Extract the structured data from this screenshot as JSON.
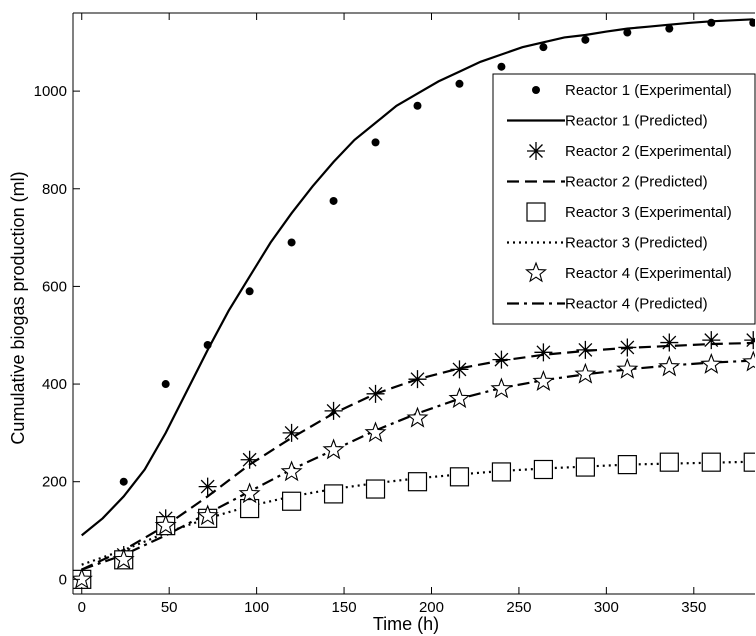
{
  "chart_data": {
    "type": "line",
    "title": "",
    "xlabel": "Time (h)",
    "ylabel": "Cumulative biogas production (ml)",
    "xlim": [
      -5,
      385
    ],
    "ylim": [
      -30,
      1160
    ],
    "x_ticks": [
      0,
      50,
      100,
      150,
      200,
      250,
      300,
      350
    ],
    "y_ticks": [
      0,
      200,
      400,
      600,
      800,
      1000
    ],
    "grid": false,
    "legend_position": "top-right",
    "legend": [
      "Reactor 1 (Experimental)",
      "Reactor 1 (Predicted)",
      "Reactor 2 (Experimental)",
      "Reactor 2 (Predicted)",
      "Reactor 3 (Experimental)",
      "Reactor 3 (Predicted)",
      "Reactor 4 (Experimental)",
      "Reactor 4 (Predicted)"
    ],
    "series": [
      {
        "name": "Reactor 1 (Experimental)",
        "kind": "markers",
        "marker": "dot",
        "x": [
          0,
          24,
          48,
          72,
          96,
          120,
          144,
          168,
          192,
          216,
          240,
          264,
          288,
          312,
          336,
          360,
          384
        ],
        "y": [
          0,
          200,
          400,
          480,
          590,
          690,
          775,
          895,
          970,
          1015,
          1050,
          1090,
          1105,
          1120,
          1128,
          1140,
          1140
        ]
      },
      {
        "name": "Reactor 1 (Predicted)",
        "kind": "line",
        "dash": "solid",
        "x": [
          0,
          12,
          24,
          36,
          48,
          60,
          72,
          84,
          96,
          108,
          120,
          132,
          144,
          156,
          168,
          180,
          192,
          204,
          216,
          228,
          240,
          252,
          264,
          276,
          288,
          300,
          312,
          324,
          336,
          348,
          360,
          372,
          384
        ],
        "y": [
          90,
          125,
          170,
          225,
          300,
          385,
          470,
          550,
          620,
          690,
          750,
          805,
          855,
          900,
          935,
          970,
          995,
          1020,
          1040,
          1060,
          1075,
          1090,
          1100,
          1110,
          1115,
          1122,
          1128,
          1132,
          1136,
          1140,
          1143,
          1145,
          1147
        ]
      },
      {
        "name": "Reactor 2 (Experimental)",
        "kind": "markers",
        "marker": "asterisk",
        "x": [
          0,
          24,
          48,
          72,
          96,
          120,
          144,
          168,
          192,
          216,
          240,
          264,
          288,
          312,
          336,
          360,
          384
        ],
        "y": [
          0,
          50,
          125,
          190,
          245,
          300,
          345,
          380,
          410,
          430,
          450,
          465,
          470,
          475,
          485,
          490,
          490
        ]
      },
      {
        "name": "Reactor 2 (Predicted)",
        "kind": "line",
        "dash": "dashed",
        "x": [
          0,
          24,
          48,
          72,
          96,
          120,
          144,
          168,
          192,
          216,
          240,
          264,
          288,
          312,
          336,
          360,
          384
        ],
        "y": [
          20,
          60,
          110,
          170,
          235,
          290,
          340,
          380,
          410,
          432,
          448,
          460,
          468,
          474,
          478,
          482,
          484
        ]
      },
      {
        "name": "Reactor 3 (Experimental)",
        "kind": "markers",
        "marker": "square",
        "x": [
          0,
          24,
          48,
          72,
          96,
          120,
          144,
          168,
          192,
          216,
          240,
          264,
          288,
          312,
          336,
          360,
          384
        ],
        "y": [
          0,
          40,
          110,
          125,
          145,
          160,
          175,
          185,
          200,
          210,
          220,
          225,
          230,
          235,
          240,
          240,
          240
        ]
      },
      {
        "name": "Reactor 3 (Predicted)",
        "kind": "line",
        "dash": "dotted",
        "x": [
          0,
          24,
          48,
          72,
          96,
          120,
          144,
          168,
          192,
          216,
          240,
          264,
          288,
          312,
          336,
          360,
          384
        ],
        "y": [
          30,
          60,
          95,
          125,
          150,
          170,
          185,
          197,
          207,
          215,
          222,
          227,
          231,
          235,
          237,
          239,
          241
        ]
      },
      {
        "name": "Reactor 4 (Experimental)",
        "kind": "markers",
        "marker": "star",
        "x": [
          0,
          24,
          48,
          72,
          96,
          120,
          144,
          168,
          192,
          216,
          240,
          264,
          288,
          312,
          336,
          360,
          384
        ],
        "y": [
          0,
          40,
          110,
          130,
          175,
          220,
          265,
          300,
          330,
          370,
          390,
          405,
          420,
          430,
          435,
          440,
          445
        ]
      },
      {
        "name": "Reactor 4 (Predicted)",
        "kind": "line",
        "dash": "dashdot",
        "x": [
          0,
          24,
          48,
          72,
          96,
          120,
          144,
          168,
          192,
          216,
          240,
          264,
          288,
          312,
          336,
          360,
          384
        ],
        "y": [
          20,
          50,
          90,
          135,
          180,
          225,
          265,
          305,
          340,
          370,
          392,
          408,
          420,
          430,
          438,
          444,
          448
        ]
      }
    ]
  }
}
